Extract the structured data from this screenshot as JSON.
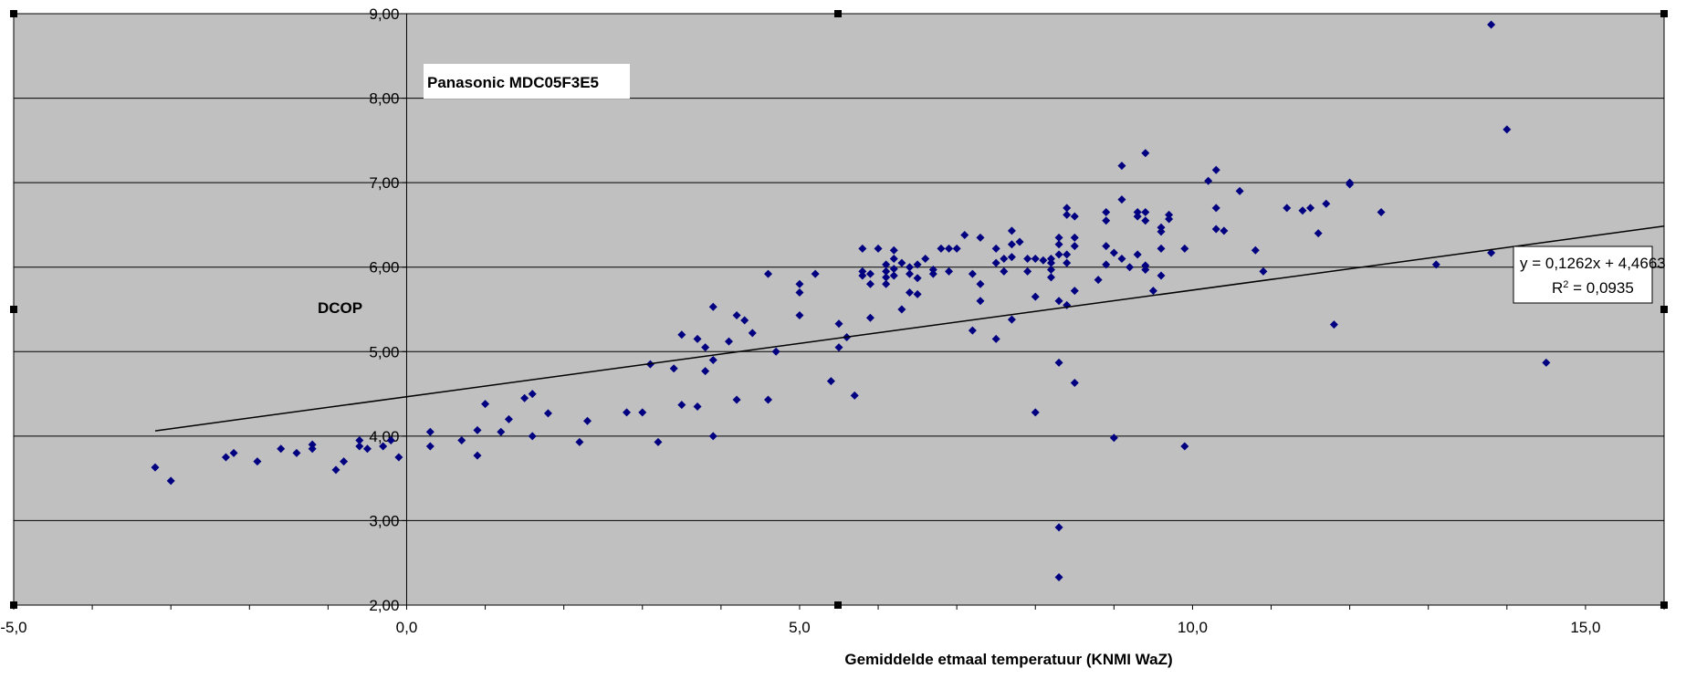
{
  "chart_data": {
    "type": "scatter",
    "title": "Panasonic MDC05F3E5",
    "xlabel": "Gemiddelde etmaal temperatuur (KNMI WaZ)",
    "ylabel": "DCOP",
    "xlim": [
      -5,
      16
    ],
    "ylim": [
      2,
      9
    ],
    "x_ticks": [
      "-5,0",
      "0,0",
      "5,0",
      "10,0",
      "15,0"
    ],
    "y_ticks": [
      "2,00",
      "3,00",
      "4,00",
      "5,00",
      "6,00",
      "7,00",
      "8,00",
      "9,00"
    ],
    "grid": "horizontal",
    "colors": {
      "plot_bg": "#c0c0c0",
      "marker": "#000080",
      "trend": "#000000",
      "grid": "#000000"
    },
    "trendline": {
      "slope": 0.1262,
      "intercept": 4.4663,
      "x_range": [
        -3.2,
        16
      ],
      "equation": "y = 0,1262x + 4,4663",
      "r2_prefix": "R",
      "r2_sup": "2",
      "r2_value": " = 0,0935"
    },
    "points": [
      [
        -3.2,
        3.63
      ],
      [
        -3.0,
        3.47
      ],
      [
        -2.3,
        3.75
      ],
      [
        -2.2,
        3.8
      ],
      [
        -1.9,
        3.7
      ],
      [
        -1.6,
        3.85
      ],
      [
        -1.4,
        3.8
      ],
      [
        -1.2,
        3.85
      ],
      [
        -1.2,
        3.9
      ],
      [
        -0.9,
        3.6
      ],
      [
        -0.8,
        3.7
      ],
      [
        -0.6,
        3.88
      ],
      [
        -0.6,
        3.95
      ],
      [
        -0.5,
        3.85
      ],
      [
        -0.3,
        3.88
      ],
      [
        -0.2,
        3.95
      ],
      [
        -0.1,
        3.75
      ],
      [
        0.3,
        3.88
      ],
      [
        0.3,
        4.05
      ],
      [
        0.7,
        3.95
      ],
      [
        0.9,
        3.77
      ],
      [
        0.9,
        4.07
      ],
      [
        1.0,
        4.38
      ],
      [
        1.2,
        4.05
      ],
      [
        1.3,
        4.2
      ],
      [
        1.5,
        4.45
      ],
      [
        1.6,
        4.5
      ],
      [
        1.6,
        4.0
      ],
      [
        1.8,
        4.27
      ],
      [
        2.2,
        3.93
      ],
      [
        2.3,
        4.18
      ],
      [
        2.8,
        4.28
      ],
      [
        3.0,
        4.28
      ],
      [
        3.1,
        4.85
      ],
      [
        3.2,
        3.93
      ],
      [
        3.4,
        4.8
      ],
      [
        3.5,
        5.2
      ],
      [
        3.5,
        4.37
      ],
      [
        3.7,
        5.15
      ],
      [
        3.7,
        4.35
      ],
      [
        3.8,
        5.05
      ],
      [
        3.8,
        4.77
      ],
      [
        3.9,
        4.9
      ],
      [
        3.9,
        5.53
      ],
      [
        3.9,
        4.0
      ],
      [
        4.1,
        5.12
      ],
      [
        4.2,
        5.43
      ],
      [
        4.2,
        4.43
      ],
      [
        4.3,
        5.37
      ],
      [
        4.4,
        5.22
      ],
      [
        4.6,
        5.92
      ],
      [
        4.6,
        4.43
      ],
      [
        4.7,
        5.0
      ],
      [
        5.0,
        5.8
      ],
      [
        5.0,
        5.7
      ],
      [
        5.0,
        5.43
      ],
      [
        5.2,
        5.92
      ],
      [
        5.4,
        4.65
      ],
      [
        5.5,
        5.33
      ],
      [
        5.5,
        5.05
      ],
      [
        5.6,
        5.17
      ],
      [
        5.7,
        4.48
      ],
      [
        5.8,
        6.22
      ],
      [
        5.8,
        5.95
      ],
      [
        5.8,
        5.9
      ],
      [
        5.9,
        5.92
      ],
      [
        5.9,
        5.8
      ],
      [
        5.9,
        5.4
      ],
      [
        6.0,
        6.22
      ],
      [
        6.1,
        6.03
      ],
      [
        6.1,
        5.95
      ],
      [
        6.1,
        5.88
      ],
      [
        6.1,
        5.8
      ],
      [
        6.2,
        6.2
      ],
      [
        6.2,
        6.1
      ],
      [
        6.2,
        5.98
      ],
      [
        6.2,
        5.9
      ],
      [
        6.3,
        6.05
      ],
      [
        6.3,
        5.5
      ],
      [
        6.4,
        6.0
      ],
      [
        6.4,
        5.92
      ],
      [
        6.4,
        5.7
      ],
      [
        6.5,
        6.03
      ],
      [
        6.5,
        5.87
      ],
      [
        6.5,
        5.68
      ],
      [
        6.6,
        6.1
      ],
      [
        6.7,
        5.97
      ],
      [
        6.7,
        5.92
      ],
      [
        6.8,
        6.22
      ],
      [
        6.9,
        6.22
      ],
      [
        6.9,
        5.95
      ],
      [
        7.0,
        6.22
      ],
      [
        7.1,
        6.38
      ],
      [
        7.2,
        5.92
      ],
      [
        7.2,
        5.25
      ],
      [
        7.3,
        6.35
      ],
      [
        7.3,
        5.8
      ],
      [
        7.3,
        5.6
      ],
      [
        7.5,
        6.22
      ],
      [
        7.5,
        6.05
      ],
      [
        7.5,
        5.15
      ],
      [
        7.6,
        6.1
      ],
      [
        7.6,
        5.95
      ],
      [
        7.7,
        6.43
      ],
      [
        7.7,
        6.27
      ],
      [
        7.7,
        6.12
      ],
      [
        7.7,
        5.38
      ],
      [
        7.8,
        6.3
      ],
      [
        7.9,
        6.1
      ],
      [
        7.9,
        5.95
      ],
      [
        8.0,
        6.1
      ],
      [
        8.0,
        5.65
      ],
      [
        8.0,
        4.28
      ],
      [
        8.1,
        6.08
      ],
      [
        8.2,
        6.05
      ],
      [
        8.2,
        5.97
      ],
      [
        8.2,
        5.88
      ],
      [
        8.2,
        6.1
      ],
      [
        8.3,
        6.35
      ],
      [
        8.3,
        6.27
      ],
      [
        8.3,
        6.15
      ],
      [
        8.3,
        5.6
      ],
      [
        8.3,
        4.87
      ],
      [
        8.3,
        2.92
      ],
      [
        8.3,
        2.33
      ],
      [
        8.4,
        6.7
      ],
      [
        8.4,
        6.62
      ],
      [
        8.4,
        6.15
      ],
      [
        8.4,
        6.05
      ],
      [
        8.4,
        5.55
      ],
      [
        8.5,
        6.6
      ],
      [
        8.5,
        6.35
      ],
      [
        8.5,
        6.25
      ],
      [
        8.5,
        5.72
      ],
      [
        8.5,
        4.63
      ],
      [
        8.8,
        5.85
      ],
      [
        8.9,
        6.65
      ],
      [
        8.9,
        6.55
      ],
      [
        8.9,
        6.25
      ],
      [
        8.9,
        6.03
      ],
      [
        9.0,
        6.17
      ],
      [
        9.0,
        3.98
      ],
      [
        9.1,
        7.2
      ],
      [
        9.1,
        6.8
      ],
      [
        9.1,
        6.1
      ],
      [
        9.2,
        6.0
      ],
      [
        9.3,
        6.65
      ],
      [
        9.3,
        6.15
      ],
      [
        9.3,
        6.6
      ],
      [
        9.4,
        7.35
      ],
      [
        9.4,
        6.65
      ],
      [
        9.4,
        6.55
      ],
      [
        9.4,
        6.02
      ],
      [
        9.4,
        5.97
      ],
      [
        9.5,
        5.72
      ],
      [
        9.6,
        6.47
      ],
      [
        9.6,
        6.42
      ],
      [
        9.6,
        6.22
      ],
      [
        9.6,
        5.9
      ],
      [
        9.7,
        6.62
      ],
      [
        9.7,
        6.57
      ],
      [
        9.9,
        6.22
      ],
      [
        9.9,
        3.88
      ],
      [
        10.2,
        7.02
      ],
      [
        10.3,
        7.15
      ],
      [
        10.3,
        6.7
      ],
      [
        10.3,
        6.45
      ],
      [
        10.4,
        6.43
      ],
      [
        10.6,
        6.9
      ],
      [
        10.8,
        6.2
      ],
      [
        10.9,
        5.95
      ],
      [
        11.2,
        6.7
      ],
      [
        11.4,
        6.67
      ],
      [
        11.5,
        6.7
      ],
      [
        11.6,
        6.4
      ],
      [
        11.7,
        6.75
      ],
      [
        11.8,
        5.32
      ],
      [
        12.0,
        7.0
      ],
      [
        12.0,
        6.98
      ],
      [
        12.4,
        6.65
      ],
      [
        13.1,
        6.03
      ],
      [
        13.8,
        8.87
      ],
      [
        13.8,
        6.17
      ],
      [
        14.0,
        7.63
      ],
      [
        14.5,
        4.87
      ]
    ]
  }
}
